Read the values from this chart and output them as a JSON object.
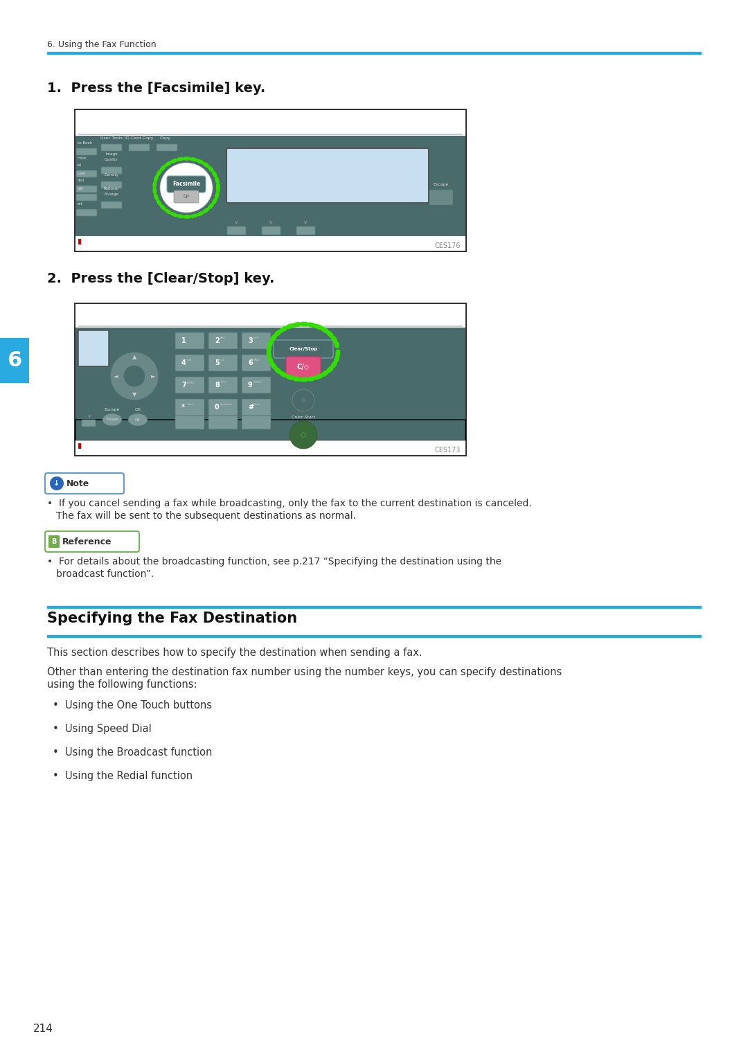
{
  "page_number": "214",
  "header_text": "6. Using the Fax Function",
  "header_line_color": "#29ABE2",
  "background_color": "#FFFFFF",
  "step1_text": "1.  Press the [Facsimile] key.",
  "step2_text": "2.  Press the [Clear/Stop] key.",
  "image1_label": "CES176",
  "image2_label": "CES173",
  "note_title": "Note",
  "note_icon_color": "#2966B8",
  "note_text_line1": "If you cancel sending a fax while broadcasting, only the fax to the current destination is canceled.",
  "note_text_line2": "The fax will be sent to the subsequent destinations as normal.",
  "reference_title": "Reference",
  "reference_icon_color": "#70AD47",
  "reference_text_line1": "For details about the broadcasting function, see p.217 “Specifying the destination using the",
  "reference_text_line2": "broadcast function”.",
  "section_title": "Specifying the Fax Destination",
  "section_line_color": "#29ABE2",
  "body_text1": "This section describes how to specify the destination when sending a fax.",
  "body_text2a": "Other than entering the destination fax number using the number keys, you can specify destinations",
  "body_text2b": "using the following functions:",
  "bullet_items": [
    "Using the One Touch buttons",
    "Using Speed Dial",
    "Using the Broadcast function",
    "Using the Redial function"
  ],
  "tab_number": "6",
  "tab_color": "#29ABE2",
  "device_panel_color": "#4A6B6B",
  "device_panel_dark": "#3A5858",
  "device_panel_light": "#5A7C7C",
  "device_button_color": "#7A9898",
  "device_button_dark": "#6A8888",
  "highlight_green": "#33DD00",
  "highlight_pink": "#FF69B4",
  "screen_color": "#C8DFF0",
  "label_color": "#888888"
}
